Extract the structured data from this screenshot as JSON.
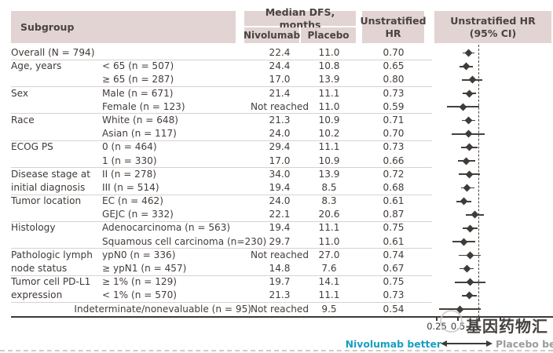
{
  "header": {
    "subgroup": "Subgroup",
    "median_dfs": "Median DFS, months",
    "nivolumab": "Nivolumab",
    "placebo": "Placebo",
    "unstratified_line1": "Unstratified",
    "unstratified_line2": "HR",
    "forest_line1": "Unstratified HR",
    "forest_line2": "(95% CI)"
  },
  "chart_data": {
    "type": "forest",
    "x_axis": {
      "scale": "log",
      "reference_line": 1.0,
      "ticks": [
        {
          "value": 0.25,
          "label": "0.25"
        },
        {
          "value": 0.5,
          "label": "0.5"
        },
        {
          "value": 1,
          "label": ""
        },
        {
          "value": 2,
          "label": ""
        }
      ]
    },
    "rows": [
      {
        "group": "Overall (N = 794)",
        "label": "",
        "nivolumab": "22.4",
        "placebo": "11.0",
        "hr": "0.70",
        "ci": [
          0.58,
          0.86
        ]
      },
      {
        "sep": true,
        "group": "Age, years",
        "label": "< 65 (n = 507)",
        "nivolumab": "24.4",
        "placebo": "10.8",
        "hr": "0.65",
        "ci": [
          0.52,
          0.81
        ]
      },
      {
        "group": "",
        "label": "≥ 65 (n = 287)",
        "nivolumab": "17.0",
        "placebo": "13.9",
        "hr": "0.80",
        "ci": [
          0.57,
          1.12
        ]
      },
      {
        "sep": true,
        "group": "Sex",
        "label": "Male (n = 671)",
        "nivolumab": "21.4",
        "placebo": "11.1",
        "hr": "0.73",
        "ci": [
          0.59,
          0.91
        ]
      },
      {
        "group": "",
        "label": "Female (n = 123)",
        "nivolumab": "Not reached",
        "placebo": "11.0",
        "hr": "0.59",
        "ci": [
          0.35,
          1.0
        ]
      },
      {
        "sep": true,
        "group": "Race",
        "label": "White (n = 648)",
        "nivolumab": "21.3",
        "placebo": "10.9",
        "hr": "0.71",
        "ci": [
          0.57,
          0.88
        ]
      },
      {
        "group": "",
        "label": "Asian (n = 117)",
        "nivolumab": "24.0",
        "placebo": "10.2",
        "hr": "0.70",
        "ci": [
          0.41,
          1.2
        ]
      },
      {
        "sep": true,
        "group": "ECOG PS",
        "label": "0 (n = 464)",
        "nivolumab": "29.4",
        "placebo": "11.1",
        "hr": "0.73",
        "ci": [
          0.56,
          0.94
        ]
      },
      {
        "group": "",
        "label": "1 (n = 330)",
        "nivolumab": "17.0",
        "placebo": "10.9",
        "hr": "0.66",
        "ci": [
          0.5,
          0.87
        ]
      },
      {
        "sep": true,
        "group": "Disease stage at",
        "label": "II (n = 278)",
        "nivolumab": "34.0",
        "placebo": "13.9",
        "hr": "0.72",
        "ci": [
          0.51,
          1.02
        ]
      },
      {
        "group": "initial diagnosis",
        "label": "III (n = 514)",
        "nivolumab": "19.4",
        "placebo": "8.5",
        "hr": "0.68",
        "ci": [
          0.55,
          0.85
        ]
      },
      {
        "sep": true,
        "group": "Tumor location",
        "label": "EC (n = 462)",
        "nivolumab": "24.0",
        "placebo": "8.3",
        "hr": "0.61",
        "ci": [
          0.48,
          0.77
        ]
      },
      {
        "group": "",
        "label": "GEJC (n = 332)",
        "nivolumab": "22.1",
        "placebo": "20.6",
        "hr": "0.87",
        "ci": [
          0.65,
          1.17
        ]
      },
      {
        "sep": true,
        "group": "Histology",
        "label": "Adenocarcinoma (n = 563)",
        "nivolumab": "19.4",
        "placebo": "11.1",
        "hr": "0.75",
        "ci": [
          0.59,
          0.95
        ]
      },
      {
        "group": "",
        "label": "Squamous cell carcinoma (n=230)",
        "nivolumab": "29.7",
        "placebo": "11.0",
        "hr": "0.61",
        "ci": [
          0.42,
          0.88
        ]
      },
      {
        "sep": true,
        "group": "Pathologic lymph",
        "label": "ypN0 (n = 336)",
        "nivolumab": "Not reached",
        "placebo": "27.0",
        "hr": "0.74",
        "ci": [
          0.51,
          1.06
        ]
      },
      {
        "group": "node status",
        "label": "≥ ypN1 (n = 457)",
        "nivolumab": "14.8",
        "placebo": "7.6",
        "hr": "0.67",
        "ci": [
          0.53,
          0.84
        ]
      },
      {
        "sep": true,
        "group": "Tumor cell PD-L1",
        "label": "≥ 1% (n = 129)",
        "nivolumab": "19.7",
        "placebo": "14.1",
        "hr": "0.75",
        "ci": [
          0.45,
          1.23
        ]
      },
      {
        "group": "expression",
        "label": "< 1% (n = 570)",
        "nivolumab": "21.3",
        "placebo": "11.1",
        "hr": "0.73",
        "ci": [
          0.57,
          0.92
        ]
      },
      {
        "sep": true,
        "span_label": "Indeterminate/nonevaluable (n = 95)",
        "nivolumab": "Not reached",
        "placebo": "9.5",
        "hr": "0.54",
        "ci": [
          0.27,
          1.05
        ]
      }
    ],
    "footer": {
      "left_label": "Nivolumab better",
      "right_label": "Placebo better"
    }
  },
  "watermark": {
    "text": "基因药物汇"
  },
  "colors": {
    "header_bg": "#e1d4d3",
    "marker": "#3f3b38",
    "nivolumab_better": "#179fc0",
    "placebo_better": "#9b9b9b",
    "separator": "#d8d2d1"
  }
}
